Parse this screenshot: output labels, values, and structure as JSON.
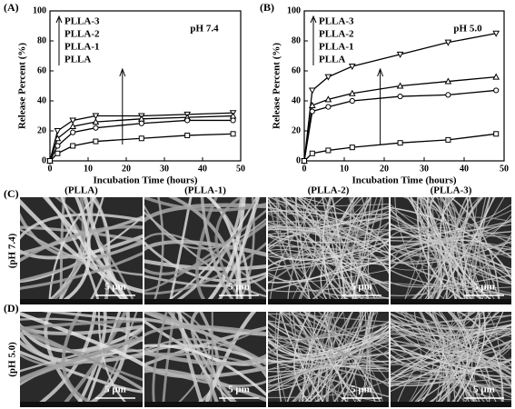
{
  "chart_data": [
    {
      "type": "line",
      "panel": "(A)",
      "annotation": "pH 7.4",
      "x_label": "Incubation Time (hours)",
      "y_label": "Release Percent (%)",
      "x": [
        0,
        2,
        6,
        12,
        24,
        36,
        48
      ],
      "xlim": [
        0,
        50
      ],
      "xticks": [
        0,
        10,
        20,
        30,
        40,
        50
      ],
      "ylim": [
        0,
        100
      ],
      "yticks": [
        0,
        20,
        40,
        60,
        80,
        100
      ],
      "series": [
        {
          "name": "PLLA-3",
          "color": "#000000",
          "marker": "triangle-down",
          "values": [
            0,
            20,
            27,
            30,
            30,
            31,
            32
          ]
        },
        {
          "name": "PLLA-2",
          "color": "#000000",
          "marker": "triangle-up",
          "values": [
            0,
            15,
            23,
            26,
            28,
            29,
            30
          ]
        },
        {
          "name": "PLLA-1",
          "color": "#000000",
          "marker": "circle",
          "values": [
            0,
            10,
            19,
            22,
            25,
            27,
            27
          ]
        },
        {
          "name": "PLLA",
          "color": "#000000",
          "marker": "square",
          "values": [
            0,
            5,
            10,
            13,
            15,
            17,
            18
          ]
        }
      ]
    },
    {
      "type": "line",
      "panel": "(B)",
      "annotation": "pH 5.0",
      "x_label": "Incubation Time (hours)",
      "y_label": "Release Percent (%)",
      "x": [
        0,
        2,
        6,
        12,
        24,
        36,
        48
      ],
      "xlim": [
        0,
        50
      ],
      "xticks": [
        0,
        10,
        20,
        30,
        40,
        50
      ],
      "ylim": [
        0,
        100
      ],
      "yticks": [
        0,
        20,
        40,
        60,
        80,
        100
      ],
      "series": [
        {
          "name": "PLLA-3",
          "color": "#000000",
          "marker": "triangle-down",
          "values": [
            0,
            47,
            56,
            63,
            71,
            79,
            85
          ]
        },
        {
          "name": "PLLA-2",
          "color": "#000000",
          "marker": "triangle-up",
          "values": [
            0,
            37,
            41,
            45,
            50,
            53,
            56
          ]
        },
        {
          "name": "PLLA-1",
          "color": "#000000",
          "marker": "circle",
          "values": [
            0,
            33,
            36,
            40,
            43,
            44,
            47
          ]
        },
        {
          "name": "PLLA",
          "color": "#000000",
          "marker": "square",
          "values": [
            0,
            5,
            7,
            9,
            12,
            14,
            18
          ]
        }
      ]
    }
  ],
  "sem": {
    "panels": [
      "(C)",
      "(D)"
    ],
    "columns": [
      "(PLLA)",
      "(PLLA-1)",
      "(PLLA-2)",
      "(PLLA-3)"
    ],
    "rows": [
      "(pH 7.4)",
      "(pH 5.0)"
    ],
    "scale_bar": "5 μm"
  }
}
